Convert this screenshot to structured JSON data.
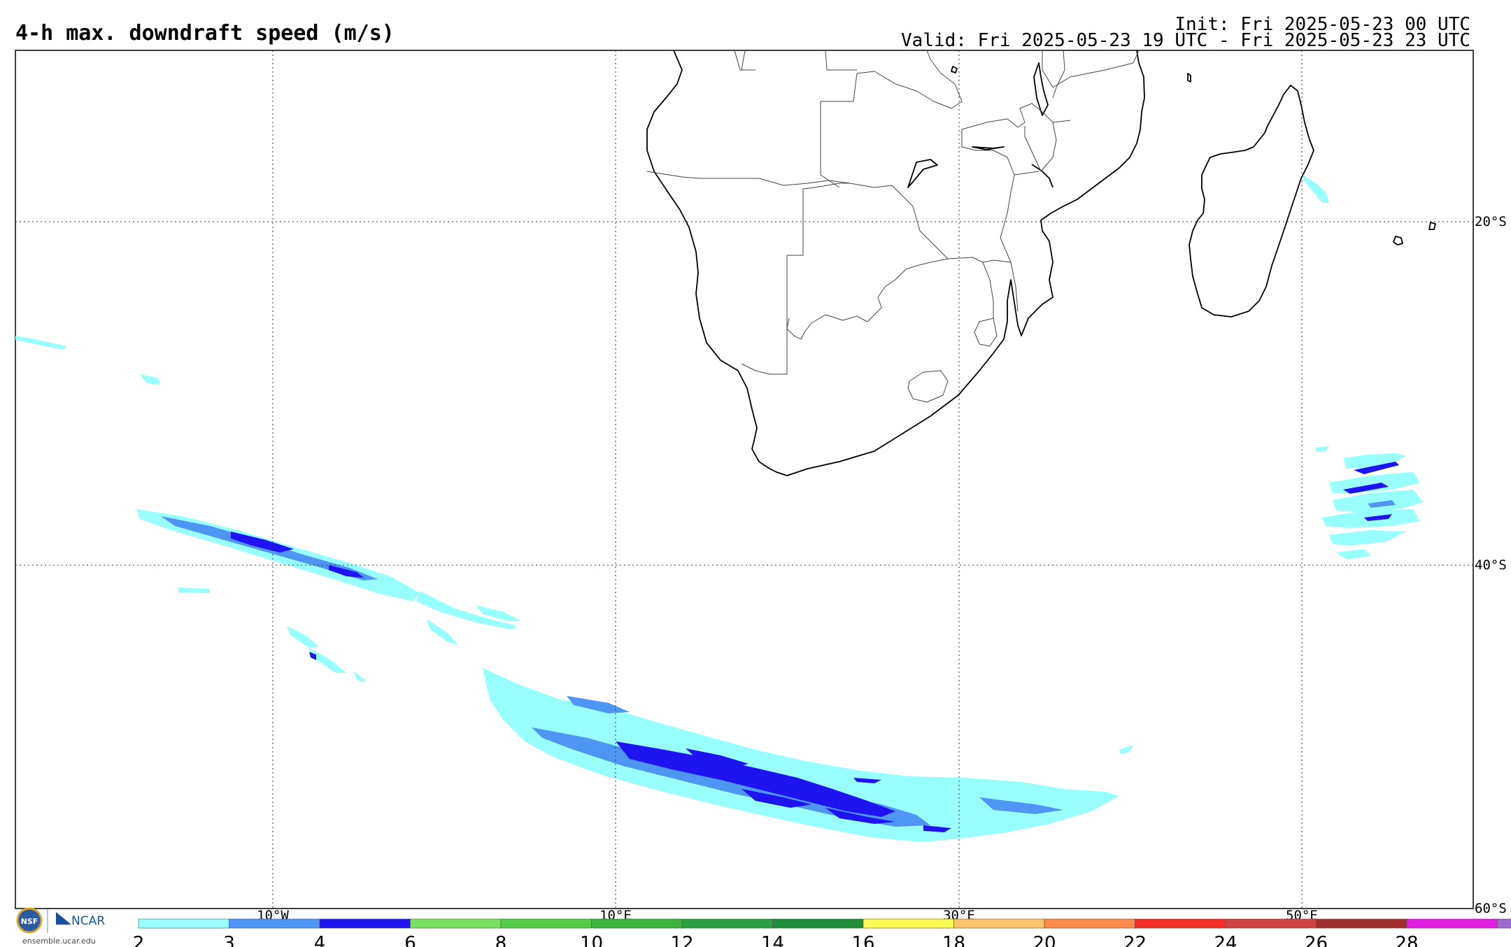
{
  "header": {
    "title": "4-h max. downdraft speed (m/s)",
    "init": "Init: Fri 2025-05-23 00 UTC",
    "valid": "Valid: Fri 2025-05-23 19 UTC - Fri 2025-05-23 23 UTC"
  },
  "map": {
    "lon_range": [
      -25,
      60
    ],
    "lat_range": [
      -60,
      -10
    ],
    "lon_labels": [
      "10°W",
      "10°E",
      "30°E",
      "50°E"
    ],
    "lat_labels": [
      "20°S",
      "40°S",
      "60°S"
    ]
  },
  "colorbar": {
    "ticks": [
      "2",
      "3",
      "4",
      "6",
      "8",
      "10",
      "12",
      "14",
      "16",
      "18",
      "20",
      "22",
      "24",
      "26",
      "28"
    ],
    "colors": [
      "#98fffd",
      "#4f95f4",
      "#1e14f0",
      "#78e060",
      "#54cc48",
      "#3cb43c",
      "#2aa040",
      "#1f8c3a",
      "#fbfa53",
      "#fbc46a",
      "#fb8a4c",
      "#f52f25",
      "#cf423f",
      "#a0302e",
      "#e41ee0",
      "#9d6bd0"
    ]
  },
  "logos": {
    "nsf": "NSF",
    "ncar": "NCAR",
    "credit": "ensemble.ucar.edu"
  },
  "icons": [
    "nsf-logo-icon",
    "ncar-logo-icon"
  ]
}
